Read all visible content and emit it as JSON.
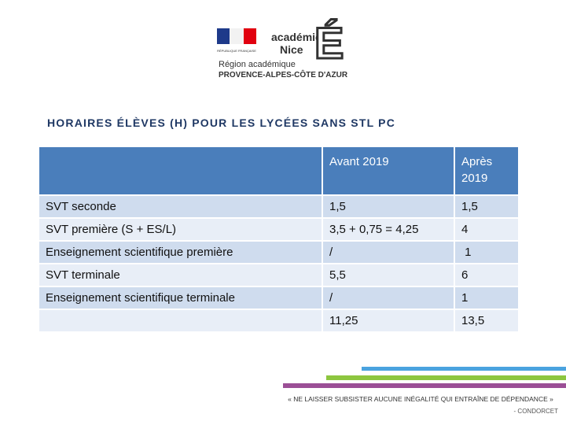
{
  "logo": {
    "republic": "RÉPUBLIQUE FRANÇAISE",
    "academy": "académie",
    "city": "Nice",
    "letter": "É",
    "region": "Région académique",
    "region_name": "PROVENCE-ALPES-CÔTE D'AZUR"
  },
  "title": "HORAIRES ÉLÈVES (H) POUR LES LYCÉES SANS STL PC",
  "table": {
    "header": [
      "Avant 2019",
      "Après 2019"
    ],
    "rows": [
      [
        "SVT seconde",
        "1,5",
        "1,5"
      ],
      [
        "SVT première (S + ES/L)",
        "3,5 + 0,75 = 4,25",
        "4"
      ],
      [
        "Enseignement scientifique première",
        "/",
        " 1"
      ],
      [
        "SVT terminale",
        "5,5",
        "6"
      ],
      [
        "Enseignement scientifique terminale",
        "/",
        "1"
      ]
    ],
    "total": [
      "11,25",
      "13,5"
    ]
  },
  "footer": {
    "quote": "« NE LAISSER SUBSISTER AUCUNE INÉGALITÉ QUI ENTRAÎNE DE DÉPENDANCE »",
    "author": "- CONDORCET"
  }
}
